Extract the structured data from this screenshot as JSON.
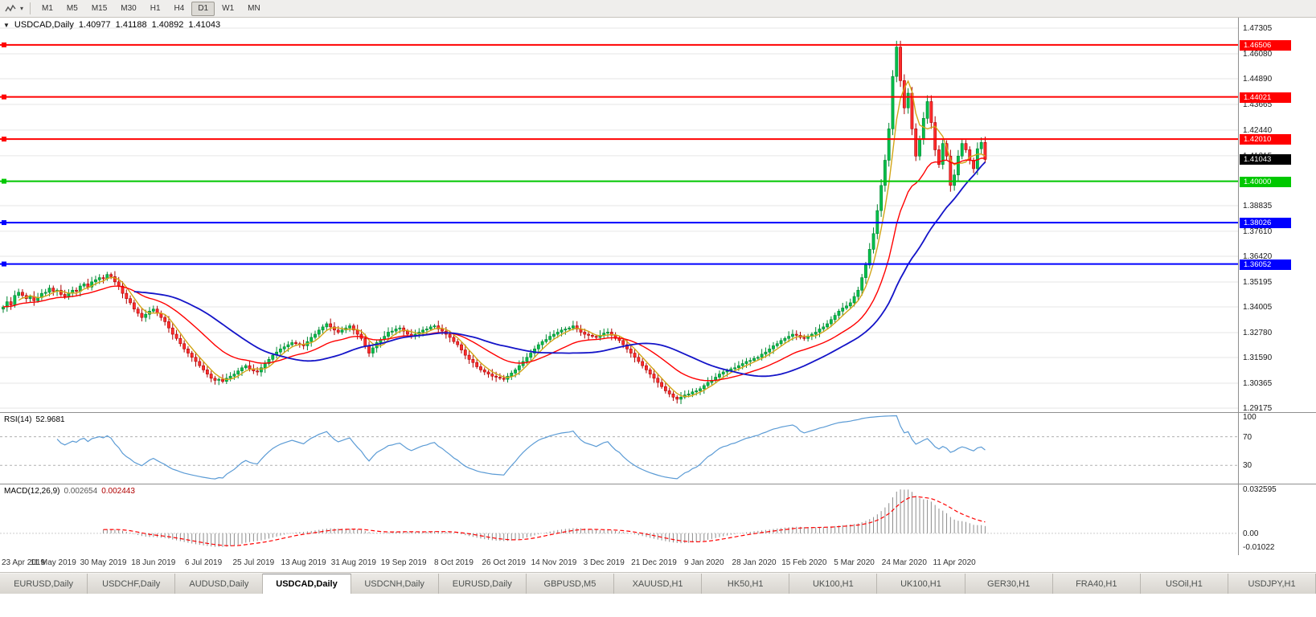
{
  "toolbar": {
    "timeframes": [
      "M1",
      "M5",
      "M15",
      "M30",
      "H1",
      "H4",
      "D1",
      "W1",
      "MN"
    ],
    "active_timeframe": "D1"
  },
  "window": {
    "title_collapse_icon": "▼"
  },
  "chart": {
    "symbol": "USDCAD,Daily",
    "open": "1.40977",
    "high": "1.41188",
    "low": "1.40892",
    "close": "1.41043"
  },
  "rsi": {
    "name": "RSI(14)",
    "value": "52.9681",
    "top_label": "100",
    "upper_label": "70",
    "lower_label": "30"
  },
  "macd": {
    "name": "MACD(12,26,9)",
    "value_main": "0.002654",
    "value_signal": "0.002443",
    "scale_max": "0.032595",
    "scale_zero": "0.00",
    "scale_min": "-0.01022"
  },
  "tabs": {
    "active_index": 3,
    "items": [
      "EURUSD,Daily",
      "USDCHF,Daily",
      "AUDUSD,Daily",
      "USDCAD,Daily",
      "USDCNH,Daily",
      "EURUSD,Daily",
      "GBPUSD,M5",
      "XAUUSD,H1",
      "HK50,H1",
      "UK100,H1",
      "UK100,H1",
      "GER30,H1",
      "FRA40,H1",
      "USOil,H1",
      "USDJPY,H1"
    ]
  },
  "colors": {
    "candle_up": "#00bf4a",
    "candle_up_border": "#008631",
    "candle_down": "#ff2d2d",
    "candle_down_border": "#ad0000",
    "ma_fast": "#d2a517",
    "ma_mid": "#ff0000",
    "ma_slow": "#1414c8",
    "rsi_line": "#5b9bd5",
    "macd_hist": "#8c8c8c",
    "macd_signal": "#ff0000",
    "price_badge": "#000000",
    "grid": "#e6e6e6",
    "level_dash": "#b0b0b0"
  },
  "chart_data": {
    "type": "candlestick",
    "symbol": "USDCAD",
    "timeframe": "Daily",
    "ylim": [
      1.29175,
      1.47305
    ],
    "y_ticks": [
      "1.47305",
      "1.46080",
      "1.44890",
      "1.43665",
      "1.42440",
      "1.41215",
      "1.40025",
      "1.38835",
      "1.37610",
      "1.36420",
      "1.35195",
      "1.34005",
      "1.32780",
      "1.31590",
      "1.30365",
      "1.29175"
    ],
    "x_labels": [
      "23 Apr 2019",
      "11 May 2019",
      "30 May 2019",
      "18 Jun 2019",
      "6 Jul 2019",
      "25 Jul 2019",
      "13 Aug 2019",
      "31 Aug 2019",
      "19 Sep 2019",
      "8 Oct 2019",
      "26 Oct 2019",
      "14 Nov 2019",
      "3 Dec 2019",
      "21 Dec 2019",
      "9 Jan 2020",
      "28 Jan 2020",
      "15 Feb 2020",
      "5 Mar 2020",
      "24 Mar 2020",
      "11 Apr 2020"
    ],
    "x_label_step": 13,
    "current_price": 1.41043,
    "hlines": [
      {
        "value": 1.46506,
        "label": "1.46506",
        "color": "#ff0000"
      },
      {
        "value": 1.44021,
        "label": "1.44021",
        "color": "#ff0000"
      },
      {
        "value": 1.4201,
        "label": "1.42010",
        "color": "#ff0000"
      },
      {
        "value": 1.4,
        "label": "1.40000",
        "color": "#00c800"
      },
      {
        "value": 1.38026,
        "label": "1.38026",
        "color": "#0000ff"
      },
      {
        "value": 1.36052,
        "label": "1.36052",
        "color": "#0000ff"
      }
    ],
    "rsi_period": 14,
    "rsi_levels": [
      70,
      30
    ],
    "macd_params": [
      12,
      26,
      9
    ],
    "ma_periods": {
      "fast": 5,
      "mid": 21,
      "slow": 35
    },
    "closes": [
      1.34,
      1.3425,
      1.341,
      1.3455,
      1.347,
      1.3455,
      1.344,
      1.345,
      1.343,
      1.3445,
      1.3465,
      1.347,
      1.349,
      1.3475,
      1.348,
      1.346,
      1.345,
      1.3465,
      1.348,
      1.3475,
      1.35,
      1.351,
      1.3495,
      1.352,
      1.353,
      1.354,
      1.3535,
      1.3555,
      1.3545,
      1.352,
      1.35,
      1.3465,
      1.344,
      1.342,
      1.339,
      1.337,
      1.335,
      1.3365,
      1.338,
      1.339,
      1.337,
      1.335,
      1.333,
      1.33,
      1.327,
      1.325,
      1.3225,
      1.32,
      1.318,
      1.316,
      1.314,
      1.312,
      1.31,
      1.308,
      1.306,
      1.305,
      1.3055,
      1.3045,
      1.306,
      1.307,
      1.308,
      1.3095,
      1.311,
      1.312,
      1.3105,
      1.3095,
      1.309,
      1.311,
      1.313,
      1.315,
      1.317,
      1.3185,
      1.32,
      1.321,
      1.322,
      1.323,
      1.3225,
      1.322,
      1.3215,
      1.3235,
      1.3255,
      1.327,
      1.329,
      1.3305,
      1.332,
      1.3305,
      1.329,
      1.328,
      1.329,
      1.33,
      1.331,
      1.329,
      1.327,
      1.325,
      1.3215,
      1.318,
      1.3205,
      1.323,
      1.3245,
      1.326,
      1.328,
      1.3285,
      1.3295,
      1.33,
      1.3285,
      1.327,
      1.326,
      1.327,
      1.328,
      1.329,
      1.3295,
      1.3305,
      1.331,
      1.3295,
      1.3285,
      1.327,
      1.3255,
      1.3235,
      1.322,
      1.3195,
      1.317,
      1.315,
      1.3135,
      1.3115,
      1.31,
      1.309,
      1.308,
      1.307,
      1.3065,
      1.306,
      1.3055,
      1.307,
      1.3085,
      1.31,
      1.312,
      1.314,
      1.316,
      1.318,
      1.32,
      1.322,
      1.3235,
      1.3245,
      1.326,
      1.327,
      1.328,
      1.329,
      1.3295,
      1.33,
      1.331,
      1.3295,
      1.328,
      1.327,
      1.3265,
      1.326,
      1.3255,
      1.3265,
      1.3275,
      1.328,
      1.3265,
      1.325,
      1.324,
      1.322,
      1.32,
      1.318,
      1.316,
      1.314,
      1.312,
      1.31,
      1.308,
      1.306,
      1.304,
      1.302,
      1.3,
      1.2985,
      1.297,
      1.296,
      1.297,
      1.298,
      1.2985,
      1.2995,
      1.3,
      1.301,
      1.3025,
      1.304,
      1.305,
      1.3065,
      1.308,
      1.309,
      1.3095,
      1.3105,
      1.311,
      1.312,
      1.313,
      1.314,
      1.3145,
      1.3155,
      1.316,
      1.3175,
      1.3185,
      1.32,
      1.3215,
      1.3225,
      1.324,
      1.325,
      1.326,
      1.327,
      1.3265,
      1.3255,
      1.325,
      1.326,
      1.327,
      1.328,
      1.3295,
      1.3305,
      1.332,
      1.334,
      1.336,
      1.338,
      1.3395,
      1.3405,
      1.342,
      1.345,
      1.348,
      1.354,
      1.36,
      1.3675,
      1.375,
      1.386,
      1.398,
      1.41,
      1.425,
      1.45,
      1.464,
      1.448,
      1.435,
      1.442,
      1.425,
      1.412,
      1.42,
      1.43,
      1.438,
      1.428,
      1.415,
      1.408,
      1.418,
      1.412,
      1.398,
      1.403,
      1.412,
      1.418,
      1.415,
      1.41,
      1.406,
      1.4155,
      1.4185,
      1.4104
    ]
  }
}
